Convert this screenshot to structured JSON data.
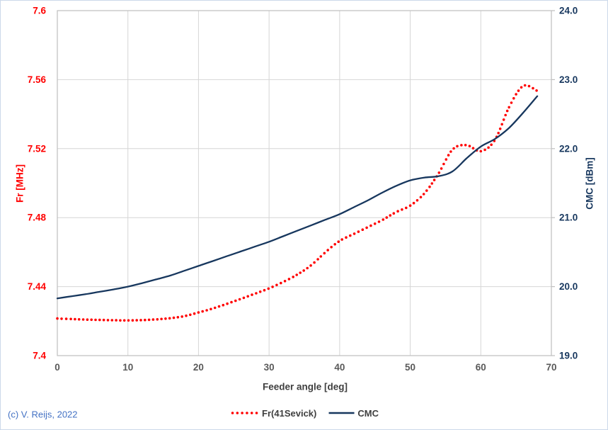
{
  "footer": {
    "copyright": "(c) V. Reijs, 2022"
  },
  "colors": {
    "fr_red": "#ff0000",
    "cmc_navy": "#17375e",
    "x_tick_gray": "#595959",
    "title_dark": "#3f3f3f",
    "gridline": "#d6d6d6",
    "plot_border": "#bfbfbf",
    "copyright_blue": "#4472c4",
    "canvas_border": "#ccd8ea"
  },
  "legend": [
    {
      "label": "Fr(41Sevick)",
      "color": "#ff0000",
      "style": "dotted"
    },
    {
      "label": "CMC",
      "color": "#17375e",
      "style": "solid"
    }
  ],
  "chart_data": {
    "type": "line",
    "title": "",
    "xlabel": "Feeder angle [deg]",
    "ylabel_left": "Fr [MHz]",
    "ylabel_right": "CMC [dBm]",
    "grid": true,
    "legend_position": "bottom-center",
    "x_range": [
      0,
      70
    ],
    "x_ticks": [
      0,
      10,
      20,
      30,
      40,
      50,
      60,
      70
    ],
    "y_left_range": [
      7.4,
      7.6
    ],
    "y_left_ticks": [
      "7.4",
      "7.44",
      "7.48",
      "7.52",
      "7.56",
      "7.6"
    ],
    "y_right_range": [
      19.0,
      24.0
    ],
    "y_right_ticks": [
      "19.0",
      "20.0",
      "21.0",
      "22.0",
      "23.0",
      "24.0"
    ],
    "x": [
      0,
      2,
      4,
      6,
      8,
      10,
      12,
      14,
      16,
      18,
      20,
      22,
      24,
      26,
      28,
      30,
      32,
      34,
      36,
      38,
      40,
      42,
      44,
      46,
      48,
      50,
      52,
      54,
      56,
      58,
      60,
      62,
      64,
      66,
      68
    ],
    "series": [
      {
        "name": "Fr(41Sevick)",
        "axis": "left",
        "style": "dotted",
        "color": "#ff0000",
        "values": [
          7.4215,
          7.4212,
          7.4209,
          7.4207,
          7.4205,
          7.4204,
          7.4206,
          7.421,
          7.4217,
          7.4229,
          7.425,
          7.4273,
          7.43,
          7.4329,
          7.4359,
          7.439,
          7.4427,
          7.447,
          7.4525,
          7.46,
          7.4665,
          7.4705,
          7.4745,
          7.4785,
          7.4832,
          7.487,
          7.494,
          7.5055,
          7.5195,
          7.522,
          7.5185,
          7.525,
          7.544,
          7.5563,
          7.5535
        ]
      },
      {
        "name": "CMC",
        "axis": "right",
        "style": "solid",
        "color": "#17375e",
        "values": [
          19.83,
          19.86,
          19.89,
          19.925,
          19.96,
          20.0,
          20.05,
          20.105,
          20.16,
          20.23,
          20.3,
          20.37,
          20.44,
          20.51,
          20.58,
          20.65,
          20.73,
          20.81,
          20.89,
          20.97,
          21.05,
          21.15,
          21.25,
          21.36,
          21.46,
          21.54,
          21.58,
          21.6,
          21.67,
          21.86,
          22.03,
          22.14,
          22.3,
          22.52,
          22.76
        ]
      }
    ]
  }
}
